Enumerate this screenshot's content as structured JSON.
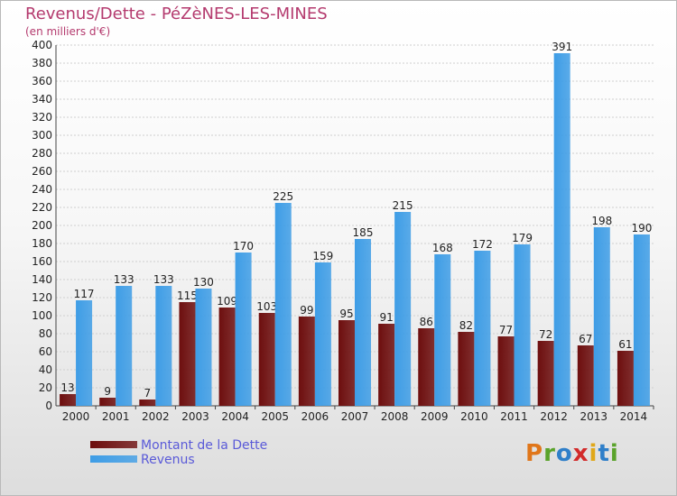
{
  "header": {
    "title": "Revenus/Dette - PéZèNES-LES-MINES",
    "subtitle": "(en milliers d'€)"
  },
  "legend": {
    "items": [
      {
        "label": "Montant de la Dette",
        "color": "#6d0e0e"
      },
      {
        "label": "Revenus",
        "color": "#3e9de6"
      }
    ]
  },
  "logo": {
    "text": "Proxiti",
    "letters": [
      {
        "ch": "P",
        "color": "#e0761a"
      },
      {
        "ch": "r",
        "color": "#5aa32b"
      },
      {
        "ch": "o",
        "color": "#2f7fc9"
      },
      {
        "ch": "x",
        "color": "#d22b2b"
      },
      {
        "ch": "i",
        "color": "#e0a81a"
      },
      {
        "ch": "t",
        "color": "#2f7fc9"
      },
      {
        "ch": "i",
        "color": "#5aa32b"
      }
    ]
  },
  "chart_data": {
    "type": "bar",
    "title": "Revenus/Dette - PéZèNES-LES-MINES",
    "subtitle": "(en milliers d'€)",
    "categories": [
      "2000",
      "2001",
      "2002",
      "2003",
      "2004",
      "2005",
      "2006",
      "2007",
      "2008",
      "2009",
      "2010",
      "2011",
      "2012",
      "2013",
      "2014"
    ],
    "series": [
      {
        "name": "Montant de la Dette",
        "color": "#6d0e0e",
        "values": [
          13,
          9,
          7,
          115,
          109,
          103,
          99,
          95,
          91,
          86,
          82,
          77,
          72,
          67,
          61
        ]
      },
      {
        "name": "Revenus",
        "color": "#3e9de6",
        "values": [
          117,
          133,
          133,
          130,
          170,
          225,
          159,
          185,
          215,
          168,
          172,
          179,
          391,
          198,
          190
        ]
      }
    ],
    "ylim": [
      0,
      400
    ],
    "yticks": [
      0,
      20,
      40,
      60,
      80,
      100,
      120,
      140,
      160,
      180,
      200,
      220,
      240,
      260,
      280,
      300,
      320,
      340,
      360,
      380,
      400
    ],
    "grid": true,
    "legend_position": "bottom-left"
  }
}
